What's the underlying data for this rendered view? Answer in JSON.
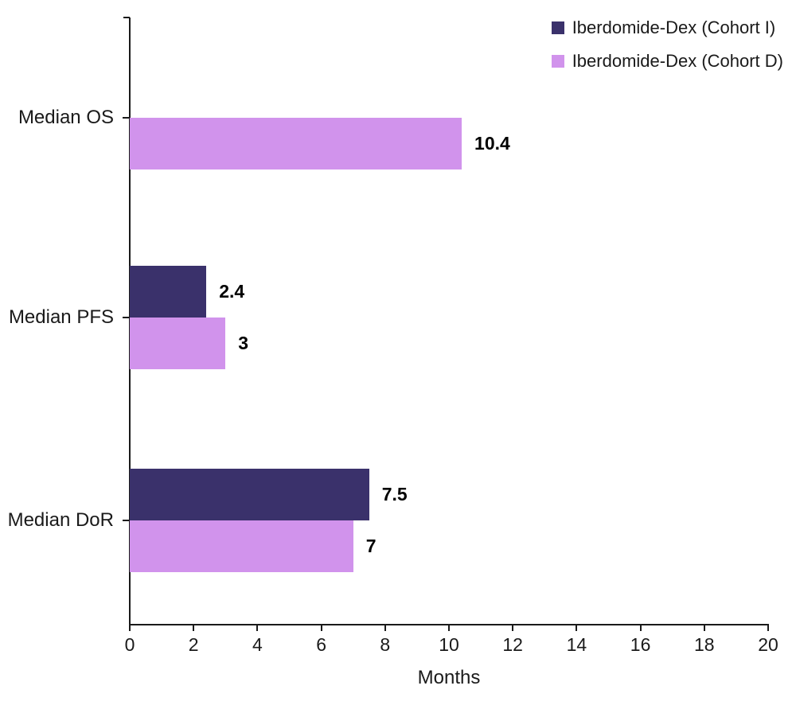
{
  "chart_data": {
    "type": "bar",
    "orientation": "horizontal",
    "title": "",
    "xlabel": "Months",
    "categories": [
      "Median OS",
      "Median PFS",
      "Median DoR"
    ],
    "series": [
      {
        "name": "Iberdomide-Dex (Cohort I)",
        "color": "#3A316B",
        "values": [
          null,
          2.4,
          7.5
        ]
      },
      {
        "name": "Iberdomide-Dex (Cohort D)",
        "color": "#D193EC",
        "values": [
          10.4,
          3,
          7
        ]
      }
    ],
    "xlim": [
      0,
      20
    ],
    "xticks": [
      0,
      2,
      4,
      6,
      8,
      10,
      12,
      14,
      16,
      18,
      20
    ],
    "value_labels": {
      "bold": true,
      "position": "right-of-bar"
    },
    "legend_position": "top-right",
    "grid": "off",
    "background": "#FFFFFF",
    "axis_color": "#1A1A1A"
  }
}
